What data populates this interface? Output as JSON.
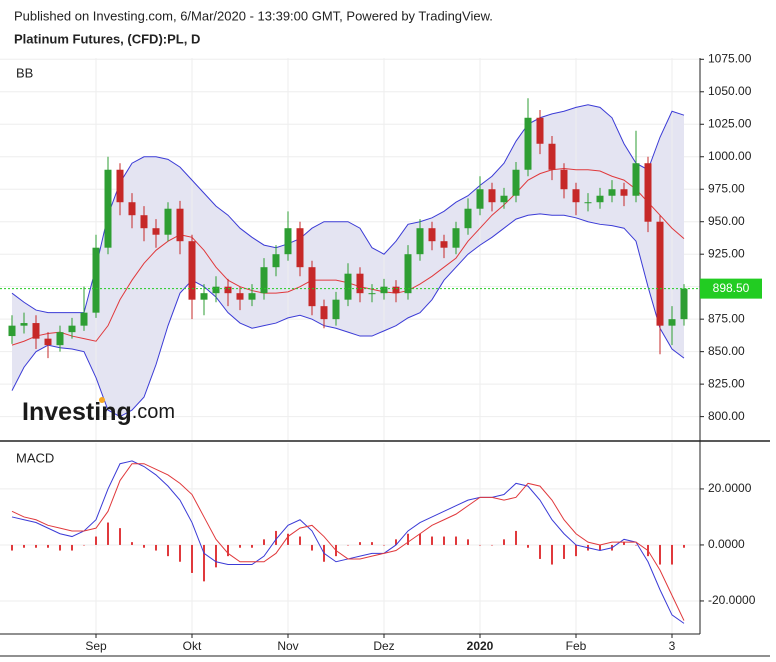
{
  "header": "Published on Investing.com, 6/Mar/2020 - 13:39:00 GMT, Powered by TradingView.",
  "logo": [
    "Investing",
    ".com"
  ],
  "chart_data": [
    {
      "type": "candlestick",
      "title": "Platinum Futures, (CFD):PL, D",
      "label": "BB",
      "up_color": "#2e9e33",
      "down_color": "#c62828",
      "band_fill": "#e4e4f2",
      "open": [
        862,
        870,
        872,
        860,
        855,
        865,
        870,
        880,
        930,
        990,
        965,
        955,
        945,
        940,
        960,
        935,
        890,
        895,
        900,
        895,
        890,
        895,
        915,
        925,
        945,
        915,
        885,
        875,
        890,
        910,
        895,
        895,
        900,
        895,
        925,
        945,
        935,
        930,
        945,
        960,
        975,
        965,
        970,
        990,
        1030,
        1010,
        990,
        975,
        965,
        965,
        970,
        975,
        970,
        995,
        950,
        870,
        875
      ],
      "high": [
        878,
        880,
        878,
        865,
        870,
        876,
        900,
        940,
        1000,
        995,
        972,
        962,
        952,
        965,
        966,
        940,
        902,
        908,
        906,
        900,
        902,
        922,
        932,
        958,
        950,
        920,
        890,
        896,
        918,
        915,
        902,
        906,
        905,
        932,
        952,
        950,
        940,
        950,
        968,
        985,
        980,
        976,
        996,
        1045,
        1036,
        1016,
        995,
        980,
        972,
        976,
        982,
        980,
        1020,
        1000,
        955,
        885,
        902
      ],
      "low": [
        856,
        864,
        852,
        845,
        850,
        860,
        866,
        876,
        925,
        955,
        945,
        935,
        930,
        935,
        925,
        875,
        878,
        888,
        885,
        882,
        885,
        890,
        908,
        920,
        908,
        878,
        868,
        870,
        885,
        888,
        888,
        890,
        888,
        890,
        920,
        928,
        922,
        925,
        940,
        955,
        958,
        960,
        965,
        985,
        1002,
        982,
        968,
        955,
        958,
        960,
        965,
        962,
        965,
        942,
        848,
        855,
        870
      ],
      "close": [
        870,
        872,
        860,
        855,
        865,
        870,
        880,
        930,
        990,
        965,
        955,
        945,
        940,
        960,
        935,
        890,
        895,
        900,
        895,
        890,
        895,
        915,
        925,
        945,
        915,
        885,
        875,
        890,
        910,
        895,
        895,
        900,
        895,
        925,
        945,
        935,
        930,
        945,
        960,
        975,
        965,
        970,
        990,
        1030,
        1010,
        990,
        975,
        965,
        965,
        970,
        975,
        970,
        995,
        950,
        870,
        875,
        898.5
      ],
      "series": [
        {
          "color": "#3b3bd6",
          "values": [
            895,
            888,
            882,
            880,
            880,
            880,
            880,
            915,
            955,
            980,
            995,
            1000,
            1000,
            998,
            992,
            982,
            972,
            962,
            955,
            945,
            938,
            932,
            930,
            933,
            937,
            945,
            950,
            950,
            950,
            945,
            930,
            925,
            935,
            948,
            950,
            953,
            958,
            965,
            970,
            978,
            985,
            995,
            1012,
            1025,
            1030,
            1033,
            1035,
            1038,
            1040,
            1038,
            1030,
            1010,
            995,
            990,
            1015,
            1035,
            1032
          ]
        },
        {
          "color": "#e0393c",
          "values": [
            855,
            858,
            862,
            864,
            865,
            862,
            860,
            858,
            870,
            890,
            905,
            918,
            928,
            935,
            940,
            938,
            928,
            915,
            905,
            900,
            897,
            895,
            895,
            896,
            900,
            905,
            905,
            905,
            903,
            900,
            898,
            896,
            895,
            897,
            902,
            908,
            915,
            922,
            935,
            945,
            955,
            963,
            972,
            982,
            987,
            990,
            991,
            990,
            990,
            989,
            985,
            982,
            975,
            965,
            955,
            945,
            937
          ]
        },
        {
          "color": "#3b3bd6",
          "values": [
            820,
            838,
            850,
            855,
            853,
            852,
            850,
            830,
            805,
            800,
            805,
            815,
            840,
            870,
            895,
            905,
            900,
            892,
            880,
            872,
            868,
            870,
            872,
            876,
            878,
            875,
            870,
            868,
            865,
            862,
            862,
            866,
            870,
            876,
            880,
            890,
            905,
            915,
            925,
            932,
            938,
            945,
            952,
            955,
            956,
            955,
            955,
            953,
            950,
            948,
            947,
            945,
            935,
            900,
            868,
            852,
            845
          ]
        }
      ],
      "current_price": {
        "value": 898.5,
        "label": "898.50"
      },
      "current_color": "#22cc22",
      "ylim": [
        782,
        1076
      ],
      "yticks": [
        {
          "value": 800,
          "label": "800.00"
        },
        {
          "value": 825,
          "label": "825.00"
        },
        {
          "value": 850,
          "label": "850.00"
        },
        {
          "value": 875,
          "label": "875.00"
        },
        {
          "value": 900,
          "label": "900.00"
        },
        {
          "value": 925,
          "label": "925.00"
        },
        {
          "value": 950,
          "label": "950.00"
        },
        {
          "value": 975,
          "label": "975.00"
        },
        {
          "value": 1000,
          "label": "1000.00"
        },
        {
          "value": 1025,
          "label": "1025.00"
        },
        {
          "value": 1050,
          "label": "1050.00"
        },
        {
          "value": 1075,
          "label": "1075.00"
        }
      ],
      "grid": true
    },
    {
      "type": "macd",
      "label": "MACD",
      "categories": [
        null,
        null,
        null,
        null,
        null,
        null,
        null,
        "Sep",
        null,
        null,
        null,
        null,
        null,
        null,
        null,
        "Okt",
        null,
        null,
        null,
        null,
        null,
        null,
        null,
        "Nov",
        null,
        null,
        null,
        null,
        null,
        null,
        null,
        "Dez",
        null,
        null,
        null,
        null,
        null,
        null,
        null,
        "2020",
        null,
        null,
        null,
        null,
        null,
        null,
        null,
        "Feb",
        null,
        null,
        null,
        null,
        null,
        null,
        null,
        "3",
        null
      ],
      "series": [
        {
          "color": "#3b3bd6",
          "values": [
            10,
            9,
            8,
            6,
            4,
            3,
            5,
            9,
            20,
            29,
            30,
            28,
            25,
            21,
            16,
            8,
            -3,
            -6,
            -7,
            -7,
            -7,
            -4,
            2,
            7,
            9,
            5,
            -3,
            -6,
            -5,
            -4,
            -3,
            -3,
            0,
            5,
            8,
            10,
            12,
            14,
            16,
            17,
            17,
            18,
            22,
            21,
            16,
            9,
            4,
            0,
            -1,
            -2,
            -1,
            2,
            1,
            -6,
            -16,
            -25,
            -28
          ]
        },
        {
          "color": "#e0393c",
          "values": [
            12,
            10,
            9,
            7,
            6,
            5,
            5,
            6,
            12,
            23,
            29,
            29,
            27,
            25,
            22,
            18,
            10,
            2,
            -3,
            -6,
            -6,
            -6,
            -3,
            3,
            6,
            7,
            3,
            -2,
            -5,
            -5,
            -4,
            -3,
            -2,
            1,
            4,
            7,
            9,
            11,
            14,
            17,
            17,
            16,
            17,
            22,
            21,
            16,
            9,
            4,
            1,
            0,
            1,
            1,
            1,
            -2,
            -9,
            -18,
            -27
          ]
        }
      ],
      "histogram": {
        "color": "#e0393c",
        "values": [
          -2,
          -1,
          -1,
          -1,
          -2,
          -2,
          0,
          3,
          8,
          6,
          1,
          -1,
          -2,
          -4,
          -6,
          -10,
          -13,
          -8,
          -4,
          -1,
          -1,
          2,
          5,
          4,
          3,
          -2,
          -6,
          -4,
          0,
          1,
          1,
          0,
          2,
          4,
          4,
          3,
          3,
          3,
          2,
          0,
          0,
          2,
          5,
          -1,
          -5,
          -7,
          -5,
          -4,
          -2,
          -2,
          -2,
          1,
          0,
          -4,
          -7,
          -7,
          -1
        ]
      },
      "ylim": [
        -31.8,
        36.4
      ],
      "yticks": [
        {
          "value": -20,
          "label": "-20.0000"
        },
        {
          "value": 0,
          "label": "0.0000"
        },
        {
          "value": 20,
          "label": "20.0000"
        }
      ],
      "grid": true
    }
  ]
}
